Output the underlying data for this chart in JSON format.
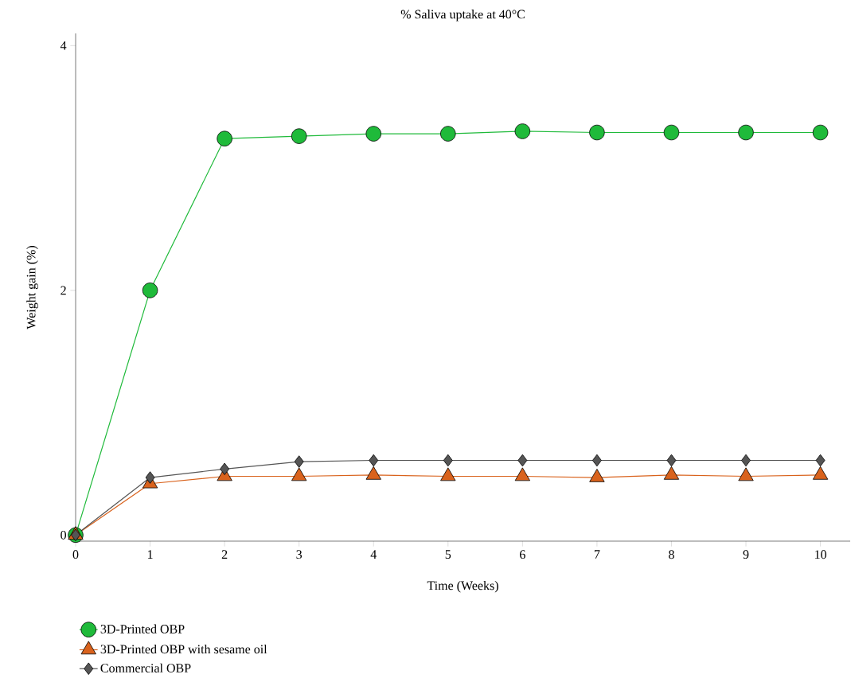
{
  "chart_data": {
    "type": "line",
    "title": "% Saliva uptake at 40°C",
    "xlabel": "Time (Weeks)",
    "ylabel": "Weight gain (%)",
    "x": [
      0,
      1,
      2,
      3,
      4,
      5,
      6,
      7,
      8,
      9,
      10
    ],
    "series": [
      {
        "name": "3D-Printed OBP",
        "color": "#1fba3a",
        "marker": "circle",
        "values": [
          0,
          2.0,
          3.24,
          3.26,
          3.28,
          3.28,
          3.3,
          3.29,
          3.29,
          3.29,
          3.29
        ]
      },
      {
        "name": "3D-Printed OBP with sesame oil",
        "color": "#d9621c",
        "marker": "triangle",
        "values": [
          0,
          0.42,
          0.48,
          0.48,
          0.49,
          0.48,
          0.48,
          0.47,
          0.49,
          0.48,
          0.49
        ]
      },
      {
        "name": "Commercial OBP",
        "color": "#555555",
        "marker": "diamond",
        "values": [
          0,
          0.47,
          0.54,
          0.6,
          0.61,
          0.61,
          0.61,
          0.61,
          0.61,
          0.61,
          0.61
        ]
      }
    ],
    "xlim": [
      0,
      10.4
    ],
    "ylim": [
      -0.05,
      4.1
    ],
    "xticks": [
      0,
      1,
      2,
      3,
      4,
      5,
      6,
      7,
      8,
      9,
      10
    ],
    "yticks": [
      0,
      2,
      4
    ],
    "grid": false,
    "legend": "bottom",
    "line_style": "solid"
  }
}
